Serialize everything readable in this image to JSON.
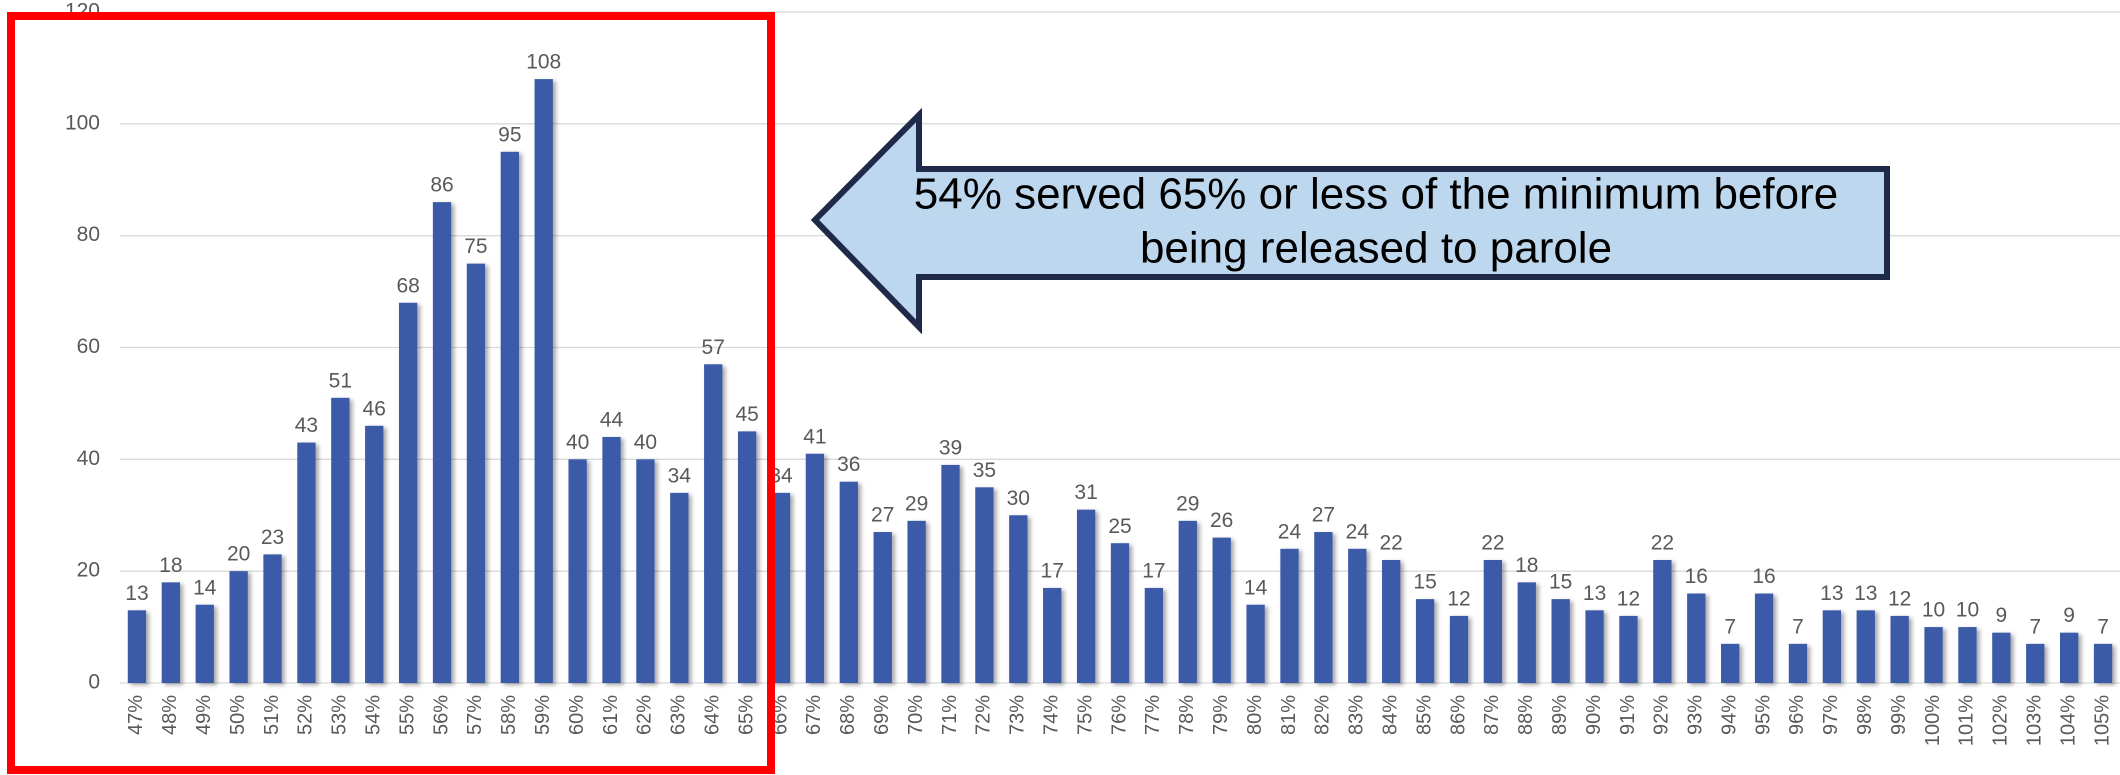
{
  "chart_data": {
    "type": "bar",
    "categories": [
      "47%",
      "48%",
      "49%",
      "50%",
      "51%",
      "52%",
      "53%",
      "54%",
      "55%",
      "56%",
      "57%",
      "58%",
      "59%",
      "60%",
      "61%",
      "62%",
      "63%",
      "64%",
      "65%",
      "66%",
      "67%",
      "68%",
      "69%",
      "70%",
      "71%",
      "72%",
      "73%",
      "74%",
      "75%",
      "76%",
      "77%",
      "78%",
      "79%",
      "80%",
      "81%",
      "82%",
      "83%",
      "84%",
      "85%",
      "86%",
      "87%",
      "88%",
      "89%",
      "90%",
      "91%",
      "92%",
      "93%",
      "94%",
      "95%",
      "96%",
      "97%",
      "98%",
      "99%",
      "100%",
      "101%",
      "102%",
      "103%",
      "104%",
      "105%"
    ],
    "values": [
      13,
      18,
      14,
      20,
      23,
      43,
      51,
      46,
      68,
      86,
      75,
      95,
      108,
      40,
      44,
      40,
      34,
      57,
      45,
      34,
      41,
      36,
      27,
      29,
      39,
      35,
      30,
      17,
      31,
      25,
      17,
      29,
      26,
      14,
      24,
      27,
      24,
      22,
      15,
      12,
      22,
      18,
      15,
      13,
      12,
      22,
      16,
      7,
      16,
      7,
      13,
      13,
      12,
      10,
      10,
      9,
      7,
      9,
      7
    ],
    "color": "#3b5aa8",
    "ylim": [
      0,
      120
    ],
    "yticks": [
      0,
      20,
      40,
      60,
      80,
      100,
      120
    ],
    "grid": true,
    "annotation": [
      "54% served 65% or less of the minimum before",
      "being released to parole"
    ]
  }
}
